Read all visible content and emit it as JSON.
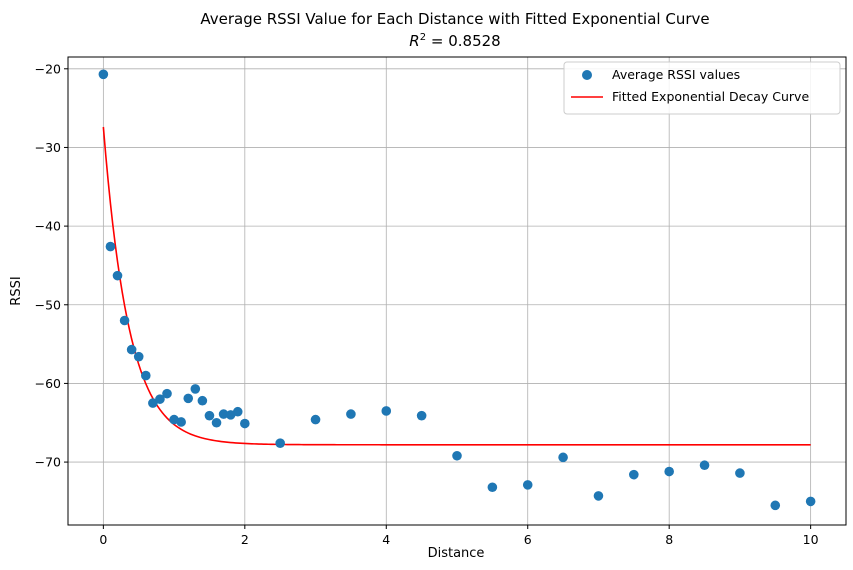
{
  "chart_data": {
    "type": "scatter",
    "title": "Average RSSI Value for Each Distance with Fitted Exponential Curve",
    "subtitle_prefix": "R",
    "subtitle_sup": "2",
    "subtitle_value": " = 0.8528",
    "xlabel": "Distance",
    "ylabel": "RSSI",
    "xlim": [
      -0.5,
      10.5
    ],
    "ylim": [
      -78,
      -18.5
    ],
    "xticks": [
      0,
      2,
      4,
      6,
      8,
      10
    ],
    "yticks": [
      -70,
      -60,
      -50,
      -40,
      -30,
      -20
    ],
    "grid": true,
    "legend_position": "top-right",
    "series": [
      {
        "name": "Average RSSI values",
        "kind": "scatter",
        "color": "#1f77b4",
        "points": [
          [
            0,
            -20.7
          ],
          [
            0.1,
            -42.6
          ],
          [
            0.2,
            -46.3
          ],
          [
            0.3,
            -52.0
          ],
          [
            0.4,
            -55.7
          ],
          [
            0.5,
            -56.6
          ],
          [
            0.6,
            -59.0
          ],
          [
            0.7,
            -62.5
          ],
          [
            0.8,
            -62.0
          ],
          [
            0.9,
            -61.3
          ],
          [
            1.0,
            -64.6
          ],
          [
            1.1,
            -64.9
          ],
          [
            1.2,
            -61.9
          ],
          [
            1.3,
            -60.7
          ],
          [
            1.4,
            -62.2
          ],
          [
            1.5,
            -64.1
          ],
          [
            1.6,
            -65.0
          ],
          [
            1.7,
            -63.9
          ],
          [
            1.8,
            -64.0
          ],
          [
            1.9,
            -63.6
          ],
          [
            2.0,
            -65.1
          ],
          [
            2.5,
            -67.6
          ],
          [
            3.0,
            -64.6
          ],
          [
            3.5,
            -63.9
          ],
          [
            4.0,
            -63.5
          ],
          [
            4.5,
            -64.1
          ],
          [
            5.0,
            -69.2
          ],
          [
            5.5,
            -73.2
          ],
          [
            6.0,
            -72.9
          ],
          [
            6.5,
            -69.4
          ],
          [
            7.0,
            -74.3
          ],
          [
            7.5,
            -71.6
          ],
          [
            8.0,
            -71.2
          ],
          [
            8.5,
            -70.4
          ],
          [
            9.0,
            -71.4
          ],
          [
            9.5,
            -75.5
          ],
          [
            10.0,
            -75.0
          ]
        ]
      },
      {
        "name": "Fitted Exponential Decay Curve",
        "kind": "line",
        "color": "#ff0000",
        "model": {
          "form": "a*exp(-b*x)+c",
          "a": 40.4,
          "b": 2.75,
          "c": -67.8,
          "x_start": 0,
          "x_end": 10
        }
      }
    ]
  }
}
